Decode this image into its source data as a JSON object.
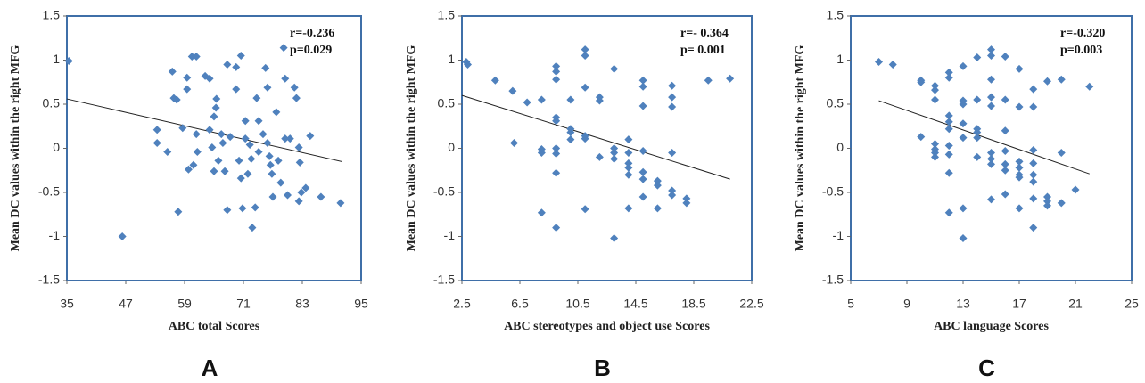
{
  "chart_data": [
    {
      "type": "scatter",
      "panel_label": "A",
      "x_label": "ABC  total Scores",
      "y_label": "Mean DC  values  within  the right MFG",
      "annotations": [
        "r=-0.236",
        "p=0.029"
      ],
      "color": "#4f81bd",
      "xlim": [
        35,
        95
      ],
      "xticks": [
        35,
        47,
        59,
        71,
        83,
        95
      ],
      "ylim": [
        -1.5,
        1.5
      ],
      "yticks": [
        1.5,
        1,
        0.5,
        0,
        -0.5,
        -1,
        -1.5
      ],
      "x": [
        35.4,
        46.3,
        53.4,
        53.4,
        55.5,
        56.5,
        56.8,
        57.4,
        57.7,
        58.6,
        59.5,
        59.5,
        60.5,
        61.4,
        59.8,
        60.8,
        61.6,
        61.4,
        63.2,
        64.1,
        64.1,
        64.6,
        65,
        65.4,
        65.5,
        65,
        65.9,
        66.5,
        66.8,
        67.2,
        67.7,
        67.7,
        68.3,
        69.5,
        69.5,
        70.5,
        70.1,
        70.5,
        70.8,
        71.4,
        71.4,
        71.9,
        72.3,
        72.6,
        72.8,
        73.4,
        73.7,
        74.1,
        74.1,
        75,
        75.5,
        75.9,
        75.9,
        76.3,
        76.5,
        76.8,
        77,
        77.7,
        78.1,
        78.6,
        79.2,
        79.5,
        79.5,
        80,
        80.5,
        81.4,
        81.8,
        82.3,
        82.5,
        82.3,
        82.8,
        83.7,
        84.6,
        86.8,
        90.8
      ],
      "values": [
        0.99,
        -1.0,
        0.21,
        0.06,
        -0.04,
        0.87,
        0.57,
        0.55,
        -0.72,
        0.23,
        0.67,
        0.8,
        1.04,
        1.04,
        -0.24,
        -0.19,
        -0.04,
        0.16,
        0.82,
        0.79,
        0.21,
        0.01,
        0.36,
        0.46,
        0.56,
        -0.26,
        -0.14,
        0.16,
        0.06,
        -0.26,
        0.95,
        -0.7,
        0.13,
        0.92,
        0.67,
        1.05,
        -0.14,
        -0.34,
        -0.68,
        0.31,
        0.11,
        -0.29,
        0.04,
        -0.12,
        -0.9,
        -0.67,
        0.57,
        0.31,
        -0.04,
        0.16,
        0.91,
        0.69,
        0.06,
        -0.09,
        -0.19,
        -0.29,
        -0.55,
        0.41,
        -0.14,
        -0.39,
        1.14,
        0.79,
        0.11,
        -0.53,
        0.11,
        0.69,
        0.57,
        0.01,
        -0.16,
        -0.6,
        -0.5,
        -0.45,
        0.14,
        -0.55,
        -0.62
      ],
      "trendline": {
        "x": [
          35,
          91
        ],
        "values": [
          0.56,
          -0.15
        ]
      }
    },
    {
      "type": "scatter",
      "panel_label": "B",
      "x_label": "ABC stereotypes and object use Scores",
      "y_label": "Mean DC  values  within  the right MFG",
      "annotations": [
        "r=- 0.364",
        "p= 0.001"
      ],
      "color": "#4f81bd",
      "xlim": [
        2.5,
        22.5
      ],
      "xticks": [
        2.5,
        6.5,
        10.5,
        14.5,
        18.5,
        22.5
      ],
      "ylim": [
        -1.5,
        1.5
      ],
      "yticks": [
        1.5,
        1,
        0.5,
        0,
        -0.5,
        -1,
        -1.5
      ],
      "x": [
        2.8,
        2.9,
        4.8,
        6,
        6.1,
        7,
        8,
        8,
        8,
        8,
        9,
        9,
        9,
        9,
        9,
        9,
        9,
        9,
        9,
        10,
        10,
        10,
        10,
        11,
        11,
        11,
        11,
        11,
        11,
        12,
        12,
        12,
        13,
        13,
        13,
        13,
        13,
        14,
        14,
        14,
        14,
        14,
        14,
        15,
        15,
        15,
        15,
        15,
        15,
        15,
        16,
        16,
        16,
        17,
        17,
        17,
        17,
        17,
        17,
        18,
        18,
        19.5,
        21
      ],
      "values": [
        0.98,
        0.95,
        0.77,
        0.65,
        0.06,
        0.52,
        0.55,
        -0.01,
        -0.05,
        -0.73,
        0.93,
        0.87,
        0.78,
        0.35,
        0.31,
        0,
        -0.06,
        -0.28,
        -0.9,
        0.55,
        0.22,
        0.18,
        0.1,
        1.12,
        1.05,
        0.69,
        0.14,
        0.11,
        -0.69,
        0.58,
        0.54,
        -0.1,
        0.9,
        -0.05,
        -0.12,
        -1.02,
        0,
        0.1,
        -0.05,
        -0.17,
        -0.22,
        -0.3,
        -0.68,
        0.77,
        0.7,
        0.48,
        -0.03,
        -0.27,
        -0.35,
        -0.55,
        -0.37,
        -0.42,
        -0.68,
        0.71,
        0.58,
        0.47,
        -0.05,
        -0.48,
        -0.53,
        -0.57,
        -0.62,
        0.77,
        0.79
      ],
      "trendline": {
        "x": [
          2.5,
          21
        ],
        "values": [
          0.6,
          -0.35
        ]
      }
    },
    {
      "type": "scatter",
      "panel_label": "C",
      "x_label": "ABC language Scores",
      "y_label": "Mean DC  values  within  the right MFG",
      "annotations": [
        "r=-0.320",
        "p=0.003"
      ],
      "color": "#4f81bd",
      "xlim": [
        5,
        25
      ],
      "xticks": [
        5,
        9,
        13,
        17,
        21,
        25
      ],
      "ylim": [
        -1.5,
        1.5
      ],
      "yticks": [
        1.5,
        1,
        0.5,
        0,
        -0.5,
        -1,
        -1.5
      ],
      "x": [
        7,
        8,
        10,
        10,
        10,
        11,
        11,
        11,
        11,
        11,
        11,
        11,
        12,
        12,
        12,
        12,
        12,
        12,
        12,
        12,
        12,
        13,
        13,
        13,
        13,
        13,
        13,
        13,
        14,
        14,
        14,
        14,
        14,
        14,
        15,
        15,
        15,
        15,
        15,
        15,
        15,
        15,
        15,
        16,
        16,
        16,
        16,
        16,
        16,
        16,
        17,
        17,
        17,
        17,
        17,
        17,
        17,
        18,
        18,
        18,
        18,
        18,
        18,
        18,
        18,
        19,
        19,
        19,
        19,
        20,
        20,
        20,
        21,
        22
      ],
      "values": [
        0.98,
        0.95,
        0.77,
        0.75,
        0.13,
        0.71,
        0.66,
        0.55,
        0.05,
        -0.01,
        -0.05,
        -0.1,
        0.86,
        0.8,
        0.37,
        0.3,
        0.22,
        0.03,
        -0.07,
        -0.28,
        -0.73,
        0.93,
        0.54,
        0.5,
        0.28,
        0.12,
        -0.68,
        -1.02,
        1.03,
        0.55,
        0.22,
        0.18,
        0.12,
        -0.1,
        1.12,
        1.05,
        0.78,
        0.58,
        0.48,
        -0.05,
        -0.12,
        -0.18,
        -0.58,
        1.04,
        0.55,
        0.2,
        -0.03,
        -0.18,
        -0.25,
        -0.52,
        0.9,
        0.47,
        -0.15,
        -0.22,
        -0.3,
        -0.33,
        -0.68,
        0.67,
        0.47,
        -0.02,
        -0.17,
        -0.3,
        -0.38,
        -0.57,
        -0.9,
        0.76,
        -0.55,
        -0.6,
        -0.65,
        0.78,
        -0.05,
        -0.62,
        -0.47,
        0.7
      ],
      "trendline": {
        "x": [
          7,
          22
        ],
        "values": [
          0.54,
          -0.29
        ]
      }
    }
  ]
}
